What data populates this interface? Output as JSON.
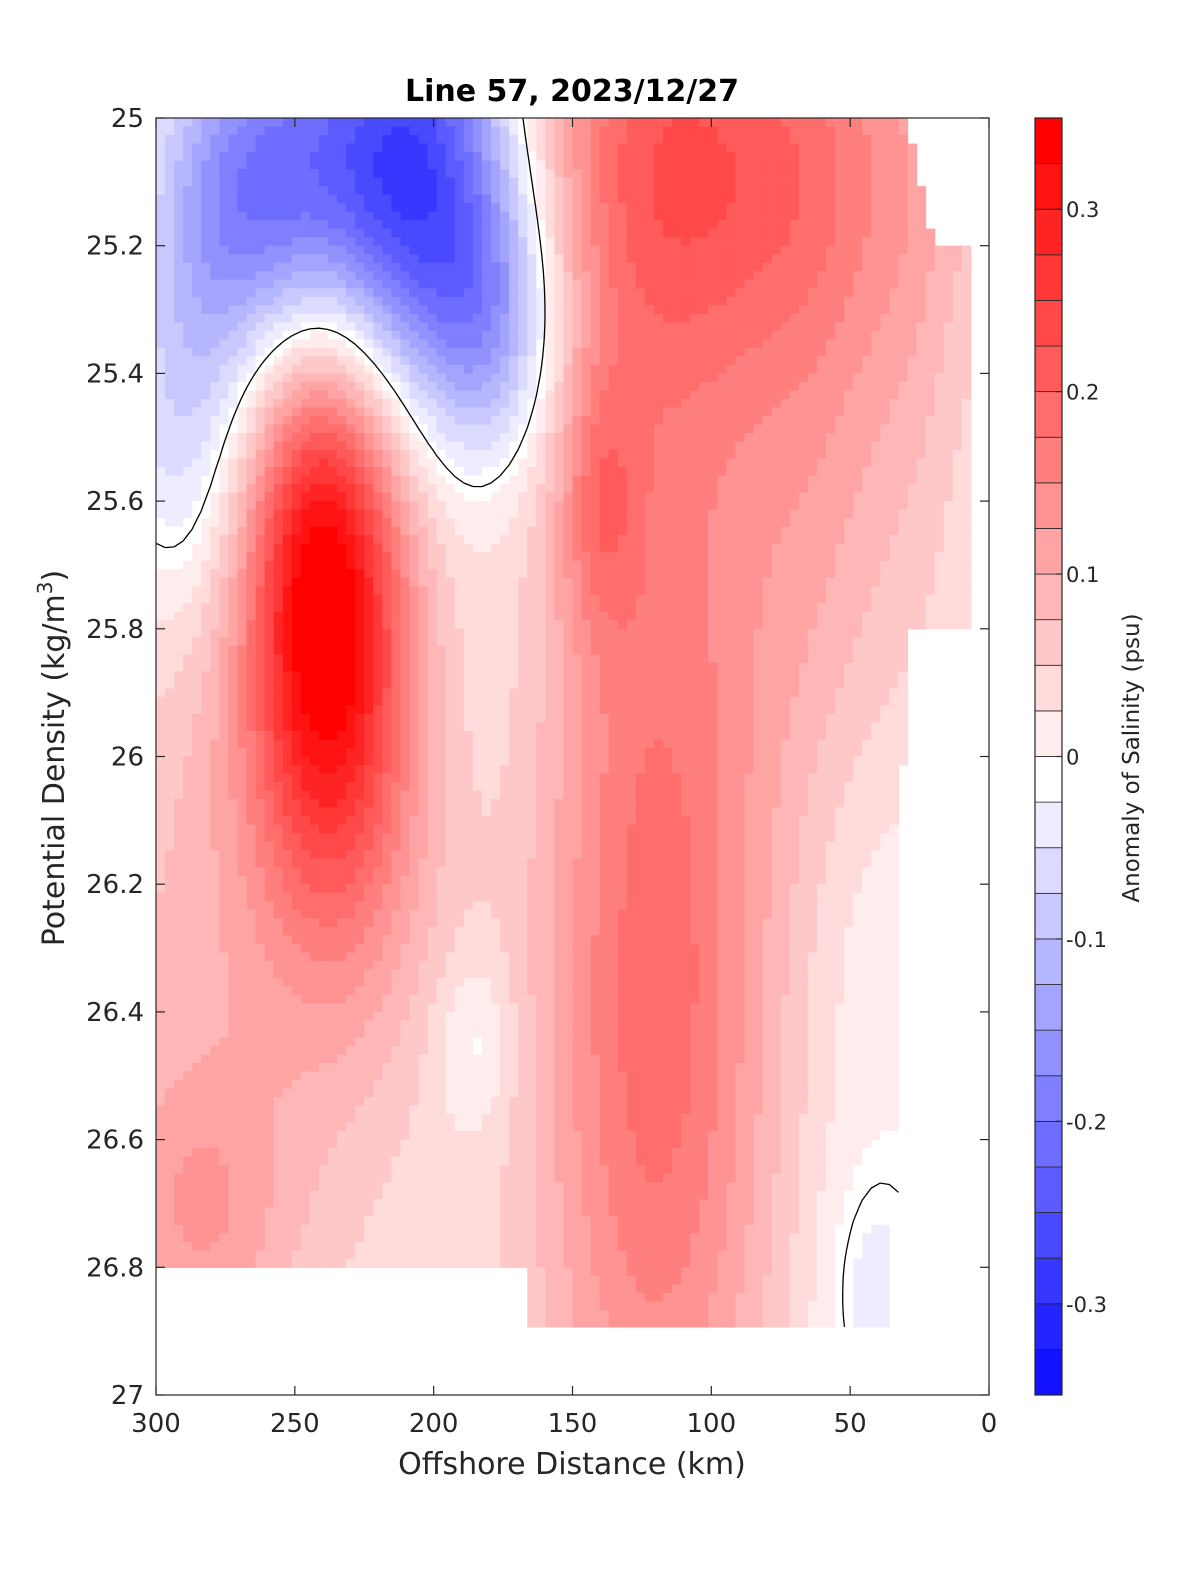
{
  "chart_data": {
    "type": "heatmap",
    "subtype": "filled-contour",
    "title": "Line 57, 2023/12/27",
    "xlabel": "Offshore Distance (km)",
    "ylabel_main": "Potential Density (kg/m",
    "ylabel_sup": "3",
    "ylabel_close": ")",
    "colorbar_label": "Anomaly of Salinity (psu)",
    "xlim": [
      300,
      0
    ],
    "ylim": [
      27,
      25
    ],
    "x_reversed": true,
    "y_reversed": true,
    "x_ticks": [
      300,
      250,
      200,
      150,
      100,
      50,
      0
    ],
    "x_tick_labels": [
      "300",
      "250",
      "200",
      "150",
      "100",
      "50",
      "0"
    ],
    "y_ticks": [
      25,
      25.2,
      25.4,
      25.6,
      25.8,
      26,
      26.2,
      26.4,
      26.6,
      26.8,
      27
    ],
    "y_tick_labels": [
      "25",
      "25.2",
      "25.4",
      "25.6",
      "25.8",
      "26",
      "26.2",
      "26.4",
      "26.6",
      "26.8",
      "27"
    ],
    "colorbar_range": [
      -0.35,
      0.35
    ],
    "colorbar_ticks": [
      0.3,
      0.2,
      0.1,
      0,
      -0.1,
      -0.2,
      -0.3
    ],
    "colorbar_tick_labels": [
      "0.3",
      "0.2",
      "0.1",
      "0",
      "-0.1",
      "-0.2",
      "-0.3"
    ],
    "contour_step": 0.025,
    "zero_contour_color": "#000000",
    "colormap": {
      "negative": "#0000ff",
      "zero": "#ffffff",
      "positive": "#ff0000"
    },
    "grid": false,
    "features": [
      {
        "x": 265,
        "y": 25.12,
        "value": -0.21,
        "sx": 25,
        "sy": 0.2
      },
      {
        "x": 208,
        "y": 25.08,
        "value": -0.32,
        "sx": 28,
        "sy": 0.24
      },
      {
        "x": 178,
        "y": 25.32,
        "value": -0.13,
        "sx": 18,
        "sy": 0.16
      },
      {
        "x": 290,
        "y": 25.5,
        "value": -0.09,
        "sx": 18,
        "sy": 0.2
      },
      {
        "x": 240,
        "y": 25.72,
        "value": 0.29,
        "sx": 20,
        "sy": 0.3
      },
      {
        "x": 228,
        "y": 26.05,
        "value": 0.09,
        "sx": 24,
        "sy": 0.3
      },
      {
        "x": 280,
        "y": 26.4,
        "value": 0.06,
        "sx": 40,
        "sy": 0.5
      },
      {
        "x": 285,
        "y": 26.72,
        "value": 0.06,
        "sx": 22,
        "sy": 0.15
      },
      {
        "x": 100,
        "y": 25.05,
        "value": 0.13,
        "sx": 60,
        "sy": 0.25
      },
      {
        "x": 120,
        "y": 25.7,
        "value": 0.11,
        "sx": 30,
        "sy": 0.8
      },
      {
        "x": 120,
        "y": 26.6,
        "value": 0.1,
        "sx": 30,
        "sy": 0.5
      },
      {
        "x": 60,
        "y": 25.5,
        "value": 0.07,
        "sx": 25,
        "sy": 0.5
      },
      {
        "x": 140,
        "y": 25.6,
        "value": 0.08,
        "sx": 10,
        "sy": 0.15
      },
      {
        "x": 185,
        "y": 26.45,
        "value": -0.05,
        "sx": 10,
        "sy": 0.1
      },
      {
        "x": 40,
        "y": 26.85,
        "value": -0.06,
        "sx": 15,
        "sy": 0.15
      },
      {
        "x": 45,
        "y": 26.3,
        "value": -0.03,
        "sx": 20,
        "sy": 0.3
      },
      {
        "x": 185,
        "y": 25.9,
        "value": -0.015,
        "sx": 20,
        "sy": 0.2
      },
      {
        "x": 25,
        "y": 25.35,
        "value": 0.02,
        "sx": 12,
        "sy": 0.35
      }
    ],
    "data_mask": [
      [
        300,
        25.0
      ],
      [
        30,
        25.0
      ],
      [
        20,
        25.2
      ],
      [
        5,
        25.2
      ],
      [
        5,
        25.8
      ],
      [
        30,
        25.8
      ],
      [
        35,
        26.9
      ],
      [
        165,
        26.9
      ],
      [
        165,
        26.8
      ],
      [
        300,
        26.8
      ]
    ]
  }
}
